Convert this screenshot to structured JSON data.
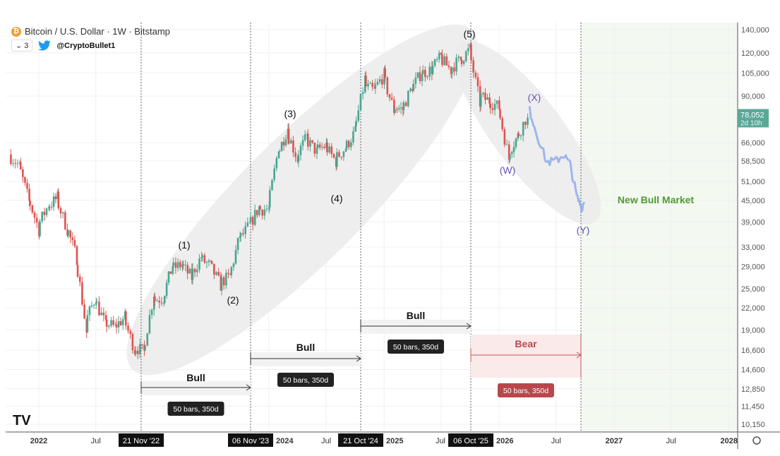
{
  "header": {
    "symbol_icon": "bitcoin-icon",
    "title": "Bitcoin / U.S. Dollar · 1W · Bitstamp",
    "indicator_count": "3",
    "social_icon": "twitter-bird-icon",
    "handle": "@CryptoBullet1"
  },
  "price_badge": {
    "price": "78,052",
    "countdown": "2d 10h",
    "color": "#5aa897"
  },
  "colors": {
    "up": "#4aa58f",
    "down": "#e0524f",
    "projection": "#8aa8e8",
    "wave_label": "#6a4fb8",
    "new_bull": "#4e9a2f",
    "bear": "#b8474c"
  },
  "annotations": {
    "waves": [
      "(1)",
      "(2)",
      "(3)",
      "(4)",
      "(5)"
    ],
    "corrective": [
      "(W)",
      "(X)",
      "(Y)"
    ],
    "new_bull_market": "New Bull Market",
    "ranges": [
      {
        "label": "Bull",
        "info": "50 bars, 350d"
      },
      {
        "label": "Bull",
        "info": "50 bars, 350d"
      },
      {
        "label": "Bull",
        "info": "50 bars, 350d"
      },
      {
        "label": "Bear",
        "info": "50 bars, 350d"
      }
    ]
  },
  "time_markers": [
    "21 Nov '22",
    "06 Nov '23",
    "21 Oct '24",
    "06 Oct '25"
  ],
  "chart_data": {
    "type": "candlestick",
    "title": "Bitcoin / U.S. Dollar · 1W · Bitstamp",
    "y_scale": "log",
    "ylim": [
      10150,
      140000
    ],
    "y_ticks": [
      "140,000",
      "120,000",
      "105,000",
      "90,000",
      "66,000",
      "58,500",
      "51,000",
      "45,000",
      "39,000",
      "33,000",
      "29,000",
      "25,000",
      "22,000",
      "19,000",
      "16,600",
      "14,600",
      "12,850",
      "11,450",
      "10,150"
    ],
    "x_ticks": [
      "2022",
      "Jul",
      "2024",
      "Jul",
      "2025",
      "Jul",
      "2026",
      "Jul",
      "2027",
      "Jul",
      "2028"
    ],
    "x_tick_dates": [
      "2022-01-01",
      "2022-07-01",
      "2024-01-01",
      "2024-07-01",
      "2025-01-01",
      "2025-07-01",
      "2026-01-01",
      "2026-07-01",
      "2027-01-01",
      "2027-07-01",
      "2028-01-01"
    ],
    "grid": true,
    "monthly_closes": [
      [
        "2021-10",
        61000
      ],
      [
        "2021-11",
        57000
      ],
      [
        "2021-12",
        46000
      ],
      [
        "2022-01",
        38000
      ],
      [
        "2022-02",
        43000
      ],
      [
        "2022-03",
        45500
      ],
      [
        "2022-04",
        38000
      ],
      [
        "2022-05",
        31500
      ],
      [
        "2022-06",
        20000
      ],
      [
        "2022-07",
        23300
      ],
      [
        "2022-08",
        20000
      ],
      [
        "2022-09",
        19400
      ],
      [
        "2022-10",
        20500
      ],
      [
        "2022-11",
        17100
      ],
      [
        "2022-12",
        16500
      ],
      [
        "2023-01",
        23100
      ],
      [
        "2023-02",
        23500
      ],
      [
        "2023-03",
        28500
      ],
      [
        "2023-04",
        29300
      ],
      [
        "2023-05",
        27200
      ],
      [
        "2023-06",
        30500
      ],
      [
        "2023-07",
        29200
      ],
      [
        "2023-08",
        26000
      ],
      [
        "2023-09",
        27000
      ],
      [
        "2023-10",
        34500
      ],
      [
        "2023-11",
        37700
      ],
      [
        "2023-12",
        42300
      ],
      [
        "2024-01",
        42500
      ],
      [
        "2024-02",
        61000
      ],
      [
        "2024-03",
        71300
      ],
      [
        "2024-04",
        60600
      ],
      [
        "2024-05",
        67500
      ],
      [
        "2024-06",
        62700
      ],
      [
        "2024-07",
        64600
      ],
      [
        "2024-08",
        59000
      ],
      [
        "2024-09",
        63300
      ],
      [
        "2024-10",
        70200
      ],
      [
        "2024-11",
        96400
      ],
      [
        "2024-12",
        93400
      ],
      [
        "2025-01",
        102400
      ],
      [
        "2025-02",
        84300
      ],
      [
        "2025-03",
        82500
      ],
      [
        "2025-04",
        94200
      ],
      [
        "2025-05",
        104600
      ],
      [
        "2025-06",
        107100
      ],
      [
        "2025-07",
        115700
      ],
      [
        "2025-08",
        108200
      ],
      [
        "2025-09",
        114000
      ],
      [
        "2025-10",
        122000
      ],
      [
        "2025-11",
        90000
      ],
      [
        "2025-12",
        87500
      ],
      [
        "2026-01",
        84000
      ],
      [
        "2026-02",
        62000
      ],
      [
        "2026-03",
        68000
      ],
      [
        "2026-04",
        78052
      ]
    ],
    "projection": [
      [
        "2026-04-08",
        82000
      ],
      [
        "2026-05-01",
        70000
      ],
      [
        "2026-06-01",
        58000
      ],
      [
        "2026-07-01",
        58500
      ],
      [
        "2026-07-25",
        61000
      ],
      [
        "2026-08-15",
        57000
      ],
      [
        "2026-09-05",
        46000
      ],
      [
        "2026-09-20",
        43000
      ],
      [
        "2026-09-28",
        44500
      ]
    ]
  }
}
